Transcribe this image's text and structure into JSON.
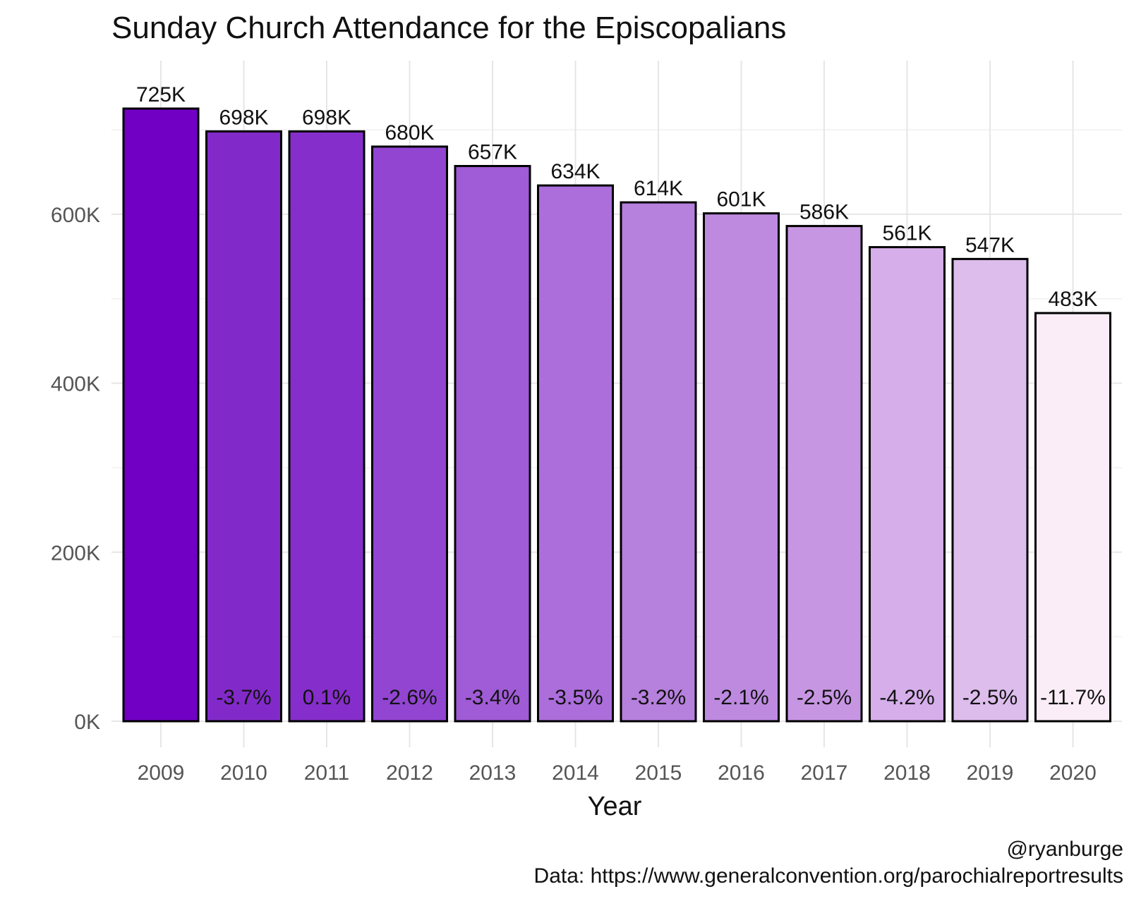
{
  "chart_data": {
    "type": "bar",
    "title": "Sunday Church Attendance for the Episcopalians",
    "xlabel": "Year",
    "ylabel": "",
    "categories": [
      "2009",
      "2010",
      "2011",
      "2012",
      "2013",
      "2014",
      "2015",
      "2016",
      "2017",
      "2018",
      "2019",
      "2020"
    ],
    "values": [
      725000,
      698000,
      698000,
      680000,
      657000,
      634000,
      614000,
      601000,
      586000,
      561000,
      547000,
      483000
    ],
    "value_labels": [
      "725K",
      "698K",
      "698K",
      "680K",
      "657K",
      "634K",
      "614K",
      "601K",
      "586K",
      "561K",
      "547K",
      "483K"
    ],
    "pct_change_labels": [
      "",
      "-3.7%",
      "0.1%",
      "-2.6%",
      "-3.4%",
      "-3.5%",
      "-3.2%",
      "-2.1%",
      "-2.5%",
      "-4.2%",
      "-2.5%",
      "-11.7%"
    ],
    "bar_colors": [
      "#7200c4",
      "#822ac9",
      "#862ecb",
      "#9145d1",
      "#a05bd6",
      "#ab6edb",
      "#b680dd",
      "#bd8ae0",
      "#c796e3",
      "#d5aeea",
      "#dcbdec",
      "#faedf7"
    ],
    "ylim": [
      0,
      725000
    ],
    "yticks": [
      0,
      200000,
      400000,
      600000
    ],
    "ytick_labels": [
      "0K",
      "200K",
      "400K",
      "600K"
    ],
    "grid": true,
    "legend": "none",
    "caption_lines": [
      "@ryanburge",
      "Data: https://www.generalconvention.org/parochialreportresults"
    ]
  }
}
